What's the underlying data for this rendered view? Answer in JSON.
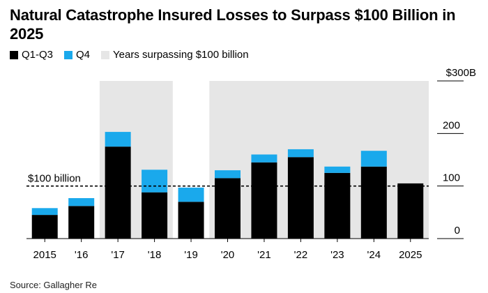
{
  "title": "Natural Catastrophe Insured Losses to Surpass $100 Billion in 2025",
  "source": "Source: Gallagher Re",
  "colors": {
    "q1_q3": "#000000",
    "q4": "#1aa9ec",
    "highlight": "#e6e6e6",
    "reference_line": "#000000"
  },
  "legend": [
    {
      "label": "Q1-Q3",
      "color": "#000000"
    },
    {
      "label": "Q4",
      "color": "#1aa9ec"
    },
    {
      "label": "Years surpassing $100 billion",
      "color": "#e6e6e6"
    }
  ],
  "chart_data": {
    "type": "bar",
    "stacked": true,
    "categories": [
      "2015",
      "'16",
      "'17",
      "'18",
      "'19",
      "'20",
      "'21",
      "'22",
      "'23",
      "'24",
      "2025"
    ],
    "series": [
      {
        "name": "Q1-Q3",
        "values": [
          45,
          62,
          175,
          88,
          70,
          115,
          145,
          155,
          125,
          137,
          105
        ]
      },
      {
        "name": "Q4",
        "values": [
          13,
          15,
          28,
          43,
          27,
          15,
          15,
          15,
          12,
          30,
          0
        ]
      }
    ],
    "highlighted_categories": [
      "'17",
      "'18",
      "'20",
      "'21",
      "'22",
      "'23",
      "'24",
      "2025"
    ],
    "highlight_label": "Years surpassing $100 billion",
    "reference_line": {
      "value": 100,
      "label": "$100 billion"
    },
    "y_axis": {
      "position": "right",
      "ylim": [
        0,
        300
      ],
      "ticks": [
        0,
        100,
        200,
        300
      ],
      "tick_labels": [
        "0",
        "100",
        "200",
        "$300B"
      ]
    },
    "grid": false
  }
}
